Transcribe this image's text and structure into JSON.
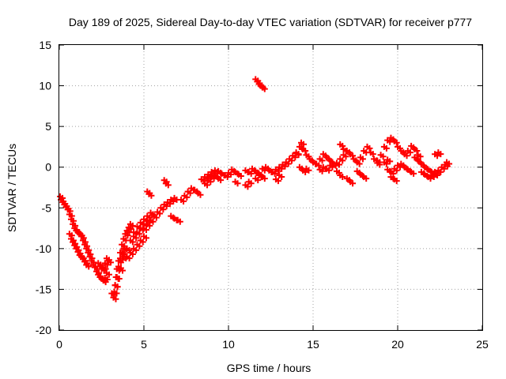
{
  "chart_data": {
    "type": "scatter",
    "title": "Day 189 of 2025, Sidereal Day-to-day VTEC variation (SDTVAR) for receiver p777",
    "xlabel": "GPS time / hours",
    "ylabel": "SDTVAR / TECUs",
    "xlim": [
      0,
      25
    ],
    "ylim": [
      -20,
      15
    ],
    "xticks": [
      "0",
      "5",
      "10",
      "15",
      "20",
      "25"
    ],
    "yticks": [
      "-20",
      "-15",
      "-10",
      "-5",
      "0",
      "5",
      "10",
      "15"
    ],
    "grid": true,
    "marker": "plus",
    "color": "#ff0000",
    "series": [
      {
        "name": "SDTVAR",
        "x": [
          0.05,
          0.1,
          0.2,
          0.3,
          0.4,
          0.5,
          0.6,
          0.7,
          0.8,
          0.9,
          1.0,
          1.1,
          1.2,
          1.3,
          1.4,
          1.5,
          1.6,
          1.7,
          1.8,
          1.9,
          2.0,
          0.6,
          0.7,
          0.8,
          0.9,
          1.0,
          1.1,
          1.2,
          1.3,
          1.4,
          1.5,
          1.6,
          2.1,
          2.2,
          2.3,
          2.4,
          2.5,
          2.6,
          2.7,
          2.8,
          2.9,
          2.3,
          2.4,
          2.5,
          2.6,
          2.7,
          2.8,
          3.1,
          3.2,
          3.25,
          3.3,
          3.35,
          3.4,
          3.5,
          3.6,
          3.7,
          3.8,
          3.9,
          4.0,
          4.1,
          4.2,
          3.3,
          3.4,
          3.5,
          3.6,
          3.7,
          3.8,
          3.6,
          3.8,
          4.0,
          4.2,
          4.4,
          4.6,
          4.8,
          5.0,
          5.2,
          5.4,
          4.0,
          4.2,
          4.4,
          4.6,
          4.8,
          5.0,
          4.4,
          4.6,
          4.8,
          5.0,
          5.2,
          5.0,
          5.2,
          5.4,
          5.6,
          5.8,
          6.0,
          6.2,
          6.4,
          6.6,
          6.8,
          5.2,
          5.3,
          6.2,
          6.3,
          6.6,
          6.8,
          7.0,
          7.2,
          7.4,
          7.6,
          7.8,
          8.0,
          8.2,
          8.4,
          8.6,
          8.8,
          9.0,
          9.2,
          9.4,
          9.6,
          9.8,
          10.0,
          10.2,
          10.4,
          10.6,
          8.6,
          8.8,
          9.0,
          9.2,
          9.4,
          10.4,
          11.0,
          11.2,
          11.4,
          11.6,
          11.8,
          12.0,
          12.2,
          12.4,
          12.6,
          12.8,
          13.0,
          13.2,
          13.4,
          13.6,
          13.8,
          14.0,
          11.0,
          11.2,
          11.6,
          11.8,
          12.0,
          11.6,
          11.7,
          11.8,
          11.9,
          12.0,
          12.8,
          13.0,
          14.0,
          14.2,
          14.3,
          14.4,
          14.6,
          14.8,
          15.0,
          15.2,
          15.4,
          15.6,
          15.8,
          16.0,
          16.2,
          14.2,
          14.4,
          14.6,
          15.4,
          15.6,
          15.8,
          16.0,
          16.4,
          16.6,
          16.8,
          17.0,
          17.2,
          17.4,
          17.6,
          17.8,
          18.0,
          18.2,
          18.4,
          18.6,
          18.8,
          16.4,
          16.6,
          17.0,
          17.2,
          17.6,
          17.8,
          18.0,
          16.6,
          16.8,
          18.8,
          19.0,
          19.2,
          19.4,
          19.6,
          19.8,
          20.0,
          20.2,
          20.4,
          20.6,
          20.8,
          21.0,
          21.2,
          19.4,
          19.6,
          19.8,
          20.0,
          20.2,
          20.4,
          20.6,
          20.8,
          19.6,
          19.8,
          19.2,
          19.4,
          21.0,
          21.2,
          21.4,
          21.6,
          21.8,
          22.0,
          22.2,
          22.4,
          22.6,
          22.8,
          22.9,
          21.4,
          21.6,
          21.8,
          22.0,
          22.2,
          22.2,
          22.4
        ],
        "y": [
          -3.6,
          -4.0,
          -4.3,
          -4.6,
          -4.9,
          -5.2,
          -5.8,
          -6.4,
          -7.0,
          -7.5,
          -7.8,
          -8.0,
          -8.2,
          -8.5,
          -9.0,
          -9.5,
          -10.0,
          -10.5,
          -11.0,
          -11.5,
          -12.0,
          -8.2,
          -8.8,
          -9.2,
          -9.6,
          -10.0,
          -10.4,
          -10.8,
          -11.0,
          -11.3,
          -11.6,
          -12.0,
          -12.3,
          -12.8,
          -13.2,
          -13.5,
          -13.7,
          -13.9,
          -13.6,
          -13.0,
          -11.5,
          -11.8,
          -12.2,
          -12.5,
          -12.3,
          -11.8,
          -11.2,
          -15.5,
          -16.0,
          -15.3,
          -14.5,
          -13.5,
          -12.5,
          -11.5,
          -10.5,
          -9.5,
          -8.8,
          -8.2,
          -7.8,
          -7.4,
          -7.0,
          -14.5,
          -13.5,
          -12.2,
          -11.2,
          -10.5,
          -10.0,
          -12.5,
          -11.0,
          -10.0,
          -9.0,
          -8.0,
          -7.3,
          -6.8,
          -6.4,
          -6.0,
          -5.6,
          -11.0,
          -10.5,
          -10.0,
          -9.5,
          -9.0,
          -8.5,
          -8.5,
          -8.0,
          -7.5,
          -7.0,
          -6.6,
          -7.5,
          -7.0,
          -6.5,
          -6.0,
          -5.5,
          -5.0,
          -4.6,
          -4.3,
          -4.0,
          -3.8,
          -3.0,
          -3.3,
          -1.6,
          -2.0,
          -6.0,
          -6.3,
          -6.5,
          -4.0,
          -3.5,
          -3.0,
          -2.6,
          -2.8,
          -3.2,
          -1.5,
          -1.2,
          -0.9,
          -0.6,
          -0.4,
          -0.5,
          -0.8,
          -1.0,
          -0.7,
          -0.3,
          -0.6,
          -0.9,
          -2.0,
          -1.6,
          -1.2,
          -1.0,
          -1.4,
          -1.8,
          -0.4,
          -0.6,
          -0.2,
          -0.5,
          -0.8,
          -0.2,
          0.0,
          -0.4,
          -0.6,
          -0.3,
          0.0,
          0.3,
          0.6,
          1.0,
          1.4,
          1.7,
          -2.2,
          -1.8,
          -1.4,
          -1.0,
          -1.2,
          10.8,
          10.5,
          10.2,
          10.0,
          9.8,
          -1.5,
          -1.0,
          1.8,
          2.5,
          3.0,
          2.2,
          1.5,
          1.0,
          0.6,
          0.4,
          1.0,
          1.6,
          1.2,
          0.8,
          0.4,
          0.0,
          -0.4,
          -0.2,
          -0.3,
          0.0,
          -0.2,
          0.2,
          0.5,
          1.0,
          1.5,
          2.0,
          1.6,
          1.0,
          0.6,
          1.2,
          2.0,
          2.5,
          1.8,
          1.0,
          0.5,
          -0.5,
          -1.0,
          -1.4,
          -1.8,
          -0.5,
          -0.9,
          -1.2,
          2.8,
          2.2,
          0.8,
          1.5,
          2.5,
          3.3,
          3.6,
          3.2,
          2.5,
          2.0,
          1.6,
          2.0,
          2.6,
          2.2,
          1.5,
          -0.3,
          -0.6,
          -0.2,
          0.2,
          0.4,
          0.0,
          -0.3,
          -0.6,
          -1.2,
          -1.5,
          0.6,
          0.9,
          1.2,
          0.8,
          0.4,
          0.0,
          -0.3,
          -0.6,
          -0.8,
          -0.4,
          0.0,
          0.3,
          0.6,
          -0.6,
          -0.9,
          -1.2,
          -1.0,
          -0.6,
          1.6,
          1.8
        ]
      }
    ]
  }
}
